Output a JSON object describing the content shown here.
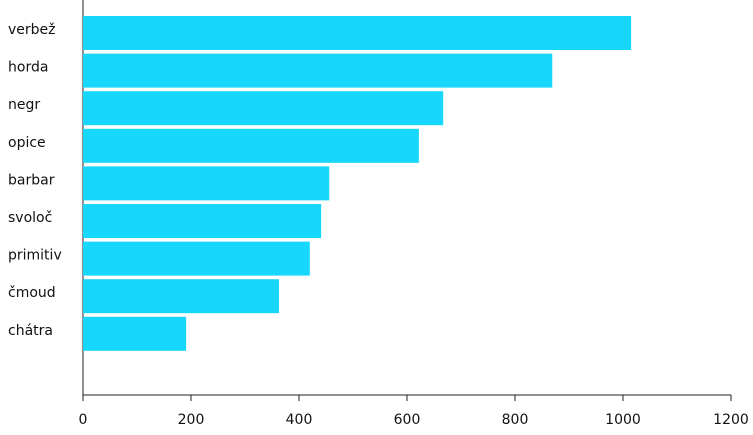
{
  "chart_data": {
    "type": "hbar",
    "categories": [
      "verbež",
      "horda",
      "negr",
      "opice",
      "barbar",
      "svoloč",
      "primitiv",
      "čmoud",
      "chátra"
    ],
    "values": [
      1015,
      869,
      667,
      622,
      456,
      441,
      420,
      363,
      191
    ],
    "color": "#17d7fc",
    "xlim": [
      0,
      1200
    ],
    "xticks": [
      0,
      200,
      400,
      600,
      800,
      1000,
      1200
    ]
  }
}
